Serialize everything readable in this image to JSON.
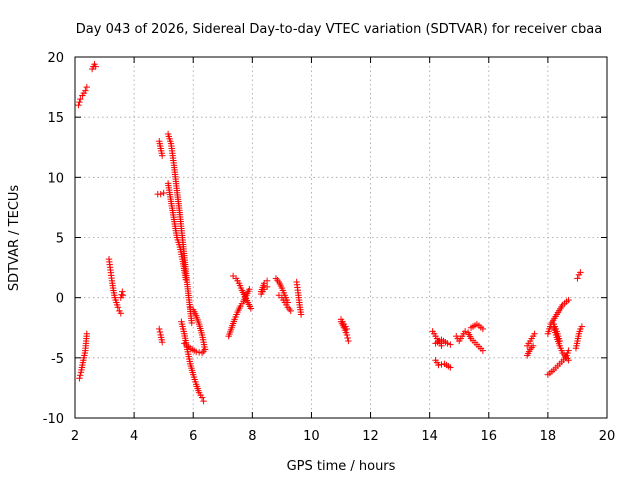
{
  "chart_data": {
    "type": "scatter",
    "title": "Day 043 of 2026, Sidereal Day-to-day VTEC variation (SDTVAR) for receiver cbaa",
    "xlabel": "GPS time / hours",
    "ylabel": "SDTVAR / TECUs",
    "xlim": [
      2,
      20
    ],
    "ylim": [
      -10,
      20
    ],
    "xticks": [
      2,
      4,
      6,
      8,
      10,
      12,
      14,
      16,
      18,
      20
    ],
    "yticks": [
      -10,
      -5,
      0,
      5,
      10,
      15,
      20
    ],
    "xtick_labels": [
      "2",
      "4",
      "6",
      "8",
      "10",
      "12",
      "14",
      "16",
      "18",
      "20"
    ],
    "ytick_labels": [
      "-10",
      "-5",
      "0",
      "5",
      "10",
      "15",
      "20"
    ],
    "grid": true,
    "marker": "+",
    "color": "#ff0000",
    "series": [
      {
        "name": "tracks",
        "segments": [
          {
            "x": [
              2.12,
              2.18,
              2.25,
              2.3,
              2.35,
              2.4
            ],
            "y": [
              16.0,
              16.5,
              16.8,
              17.0,
              17.2,
              17.5
            ]
          },
          {
            "x": [
              2.58,
              2.62,
              2.66,
              2.7
            ],
            "y": [
              19.0,
              19.2,
              19.4,
              19.2
            ]
          },
          {
            "x": [
              2.15,
              2.2,
              2.25,
              2.3,
              2.35,
              2.4
            ],
            "y": [
              -6.7,
              -6.2,
              -5.6,
              -5.0,
              -4.4,
              -3.0
            ]
          },
          {
            "x": [
              3.15,
              3.2,
              3.25,
              3.3,
              3.35,
              3.4,
              3.45,
              3.5,
              3.55
            ],
            "y": [
              3.2,
              2.3,
              1.4,
              0.6,
              0.0,
              -0.4,
              -0.8,
              -1.1,
              -1.3
            ]
          },
          {
            "x": [
              3.55,
              3.6,
              3.62
            ],
            "y": [
              0.0,
              0.5,
              0.2
            ]
          },
          {
            "x": [
              4.85,
              4.9,
              4.95
            ],
            "y": [
              13.0,
              12.4,
              11.8
            ]
          },
          {
            "x": [
              4.8,
              4.9,
              5.0
            ],
            "y": [
              8.6,
              8.6,
              8.7
            ]
          },
          {
            "x": [
              4.85,
              4.9,
              4.95
            ],
            "y": [
              -2.6,
              -3.1,
              -3.7
            ]
          },
          {
            "x": [
              5.15,
              5.25,
              5.35,
              5.45,
              5.55,
              5.65,
              5.75,
              5.85,
              5.95
            ],
            "y": [
              13.6,
              12.8,
              11.0,
              8.9,
              6.9,
              4.6,
              2.2,
              0.0,
              -2.1
            ]
          },
          {
            "x": [
              5.15,
              5.25,
              5.35,
              5.45,
              5.55,
              5.65,
              5.75
            ],
            "y": [
              9.5,
              8.0,
              6.5,
              5.0,
              4.2,
              3.0,
              1.5
            ]
          },
          {
            "x": [
              5.6,
              5.7,
              5.8,
              5.9,
              6.0,
              6.1,
              6.2,
              6.3,
              6.35
            ],
            "y": [
              -2.0,
              -3.0,
              -4.3,
              -5.5,
              -6.4,
              -7.2,
              -7.9,
              -8.3,
              -8.6
            ]
          },
          {
            "x": [
              5.9,
              6.0,
              6.1,
              6.2,
              6.3,
              6.4
            ],
            "y": [
              -0.8,
              -1.0,
              -1.5,
              -2.2,
              -3.1,
              -4.3
            ]
          },
          {
            "x": [
              5.7,
              5.9,
              6.1,
              6.3,
              6.4
            ],
            "y": [
              -3.8,
              -4.2,
              -4.5,
              -4.6,
              -4.3
            ]
          },
          {
            "x": [
              7.2,
              7.3,
              7.4,
              7.5,
              7.6,
              7.7,
              7.8,
              7.9
            ],
            "y": [
              -3.2,
              -2.5,
              -1.8,
              -1.2,
              -0.7,
              -0.3,
              0.2,
              0.7
            ]
          },
          {
            "x": [
              7.35,
              7.45,
              7.55,
              7.65,
              7.75,
              7.85,
              7.95
            ],
            "y": [
              1.8,
              1.6,
              1.2,
              0.6,
              0.1,
              -0.4,
              -0.9
            ]
          },
          {
            "x": [
              8.3,
              8.4,
              8.5
            ],
            "y": [
              0.5,
              1.2,
              1.4
            ]
          },
          {
            "x": [
              8.3,
              8.4,
              8.5
            ],
            "y": [
              0.3,
              0.7,
              0.9
            ]
          },
          {
            "x": [
              8.8,
              8.9,
              9.0,
              9.1,
              9.2
            ],
            "y": [
              1.6,
              1.3,
              0.8,
              0.2,
              -0.4
            ]
          },
          {
            "x": [
              8.9,
              9.0,
              9.1,
              9.2,
              9.3
            ],
            "y": [
              0.2,
              0.0,
              -0.4,
              -0.8,
              -1.1
            ]
          },
          {
            "x": [
              9.5,
              9.55,
              9.6,
              9.65
            ],
            "y": [
              1.3,
              0.4,
              -0.6,
              -1.4
            ]
          },
          {
            "x": [
              11.0,
              11.1,
              11.2,
              11.25
            ],
            "y": [
              -2.0,
              -2.5,
              -3.1,
              -3.6
            ]
          },
          {
            "x": [
              11.0,
              11.1,
              11.2
            ],
            "y": [
              -1.8,
              -2.2,
              -2.6
            ]
          },
          {
            "x": [
              14.1,
              14.2,
              14.3,
              14.4
            ],
            "y": [
              -2.8,
              -3.2,
              -3.6,
              -4.0
            ]
          },
          {
            "x": [
              14.2,
              14.3,
              14.5,
              14.7
            ],
            "y": [
              -5.2,
              -5.6,
              -5.5,
              -5.8
            ]
          },
          {
            "x": [
              14.2,
              14.4,
              14.6,
              14.7
            ],
            "y": [
              -3.8,
              -3.5,
              -3.8,
              -3.9
            ]
          },
          {
            "x": [
              14.9,
              15.0,
              15.1,
              15.2
            ],
            "y": [
              -3.2,
              -3.6,
              -3.2,
              -2.8
            ]
          },
          {
            "x": [
              15.3,
              15.4,
              15.6,
              15.8
            ],
            "y": [
              -2.9,
              -3.4,
              -3.9,
              -4.4
            ]
          },
          {
            "x": [
              15.4,
              15.6,
              15.8
            ],
            "y": [
              -2.5,
              -2.2,
              -2.6
            ]
          },
          {
            "x": [
              17.3,
              17.4,
              17.5,
              17.55
            ],
            "y": [
              -4.0,
              -3.6,
              -3.2,
              -3.0
            ]
          },
          {
            "x": [
              17.3,
              17.4,
              17.5
            ],
            "y": [
              -4.8,
              -4.3,
              -4.0
            ]
          },
          {
            "x": [
              18.0,
              18.1,
              18.3,
              18.5,
              18.7
            ],
            "y": [
              -3.0,
              -2.2,
              -1.4,
              -0.6,
              -0.2
            ]
          },
          {
            "x": [
              18.0,
              18.2,
              18.4,
              18.6,
              18.7
            ],
            "y": [
              -6.4,
              -6.0,
              -5.5,
              -5.0,
              -4.4
            ]
          },
          {
            "x": [
              18.2,
              18.3,
              18.4,
              18.5,
              18.6,
              18.7
            ],
            "y": [
              -2.5,
              -3.3,
              -4.0,
              -4.6,
              -4.9,
              -5.2
            ]
          },
          {
            "x": [
              18.2,
              18.3,
              18.4
            ],
            "y": [
              -2.2,
              -2.8,
              -3.6
            ]
          },
          {
            "x": [
              18.95,
              19.0,
              19.05,
              19.1,
              19.15
            ],
            "y": [
              -4.2,
              -3.6,
              -3.0,
              -2.6,
              -2.4
            ]
          },
          {
            "x": [
              19.0,
              19.05,
              19.1
            ],
            "y": [
              1.6,
              1.9,
              2.1
            ]
          }
        ]
      }
    ]
  }
}
